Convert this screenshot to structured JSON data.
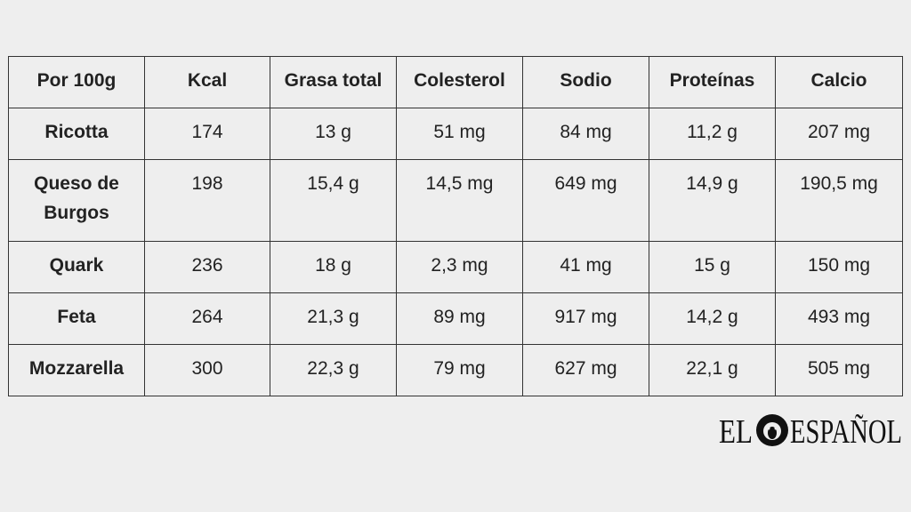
{
  "table": {
    "header": [
      "Por 100g",
      "Kcal",
      "Grasa total",
      "Colesterol",
      "Sodio",
      "Proteínas",
      "Calcio"
    ],
    "rows": [
      [
        "Ricotta",
        "174",
        "13 g",
        "51 mg",
        "84 mg",
        "11,2 g",
        "207 mg"
      ],
      [
        "Queso de Burgos",
        "198",
        "15,4 g",
        "14,5 mg",
        "649 mg",
        "14,9 g",
        "190,5 mg"
      ],
      [
        "Quark",
        "236",
        "18 g",
        "2,3 mg",
        "41 mg",
        "15 g",
        "150 mg"
      ],
      [
        "Feta",
        "264",
        "21,3 g",
        "89 mg",
        "917 mg",
        "14,2 g",
        "493 mg"
      ],
      [
        "Mozzarella",
        "300",
        "22,3 g",
        "79 mg",
        "627 mg",
        "22,1 g",
        "505 mg"
      ]
    ]
  },
  "logo": {
    "left": "EL",
    "right": "ESPAÑOL"
  }
}
